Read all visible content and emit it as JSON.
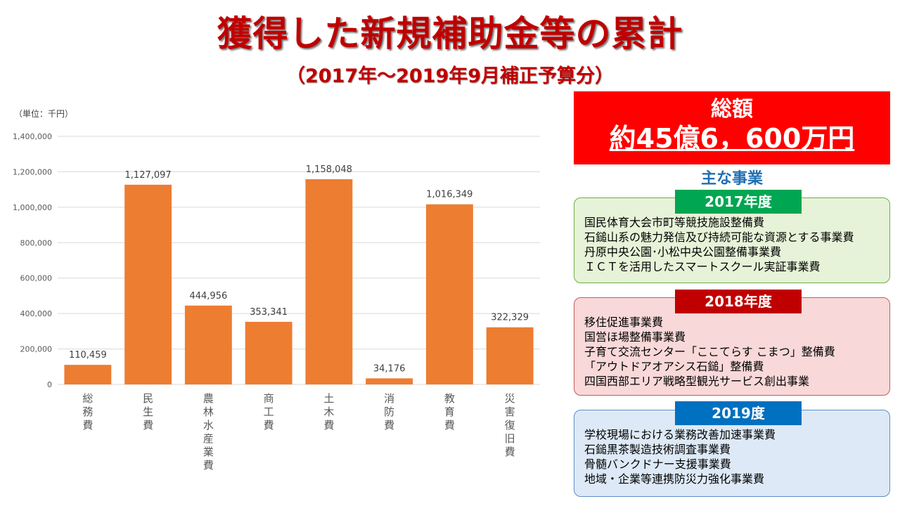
{
  "header": {
    "title": "獲得した新規補助金等の累計",
    "subtitle": "（2017年～2019年9月補正予算分）"
  },
  "chart_data": {
    "type": "bar",
    "unit_label": "（単位：千円）",
    "categories": [
      "総務費",
      "民生費",
      "農林水産業費",
      "商工費",
      "土木費",
      "消防費",
      "教育費",
      "災害復旧費"
    ],
    "values": [
      110459,
      1127097,
      444956,
      353341,
      1158048,
      34176,
      1016349,
      322329
    ],
    "value_labels": [
      "110,459",
      "1,127,097",
      "444,956",
      "353,341",
      "1,158,048",
      "34,176",
      "1,016,349",
      "322,329"
    ],
    "ylim": [
      0,
      1400000
    ],
    "yticks": [
      0,
      200000,
      400000,
      600000,
      800000,
      1000000,
      1200000,
      1400000
    ],
    "ytick_labels": [
      "0",
      "200,000",
      "400,000",
      "600,000",
      "800,000",
      "1,000,000",
      "1,200,000",
      "1,400,000"
    ],
    "bar_color": "#ed7d31",
    "grid": true,
    "legend": "none"
  },
  "summary": {
    "total_label": "総額",
    "total_value": "約45億6，600万円",
    "main_projects_heading": "主な事業"
  },
  "years": [
    {
      "label": "2017年度",
      "color": "#00a651",
      "items": [
        "国民体育大会市町等競技施設整備費",
        "石鎚山系の魅力発信及び持続可能な資源とする事業費",
        "丹原中央公園･小松中央公園整備事業費",
        "ＩＣＴを活用したスマートスクール実証事業費"
      ]
    },
    {
      "label": "2018年度",
      "color": "#c00000",
      "items": [
        "移住促進事業費",
        "国営ほ場整備事業費",
        "子育て交流センター「ここてらす こまつ」整備費",
        "「アウトドアオアシス石鎚」整備費",
        "四国西部エリア戦略型観光サービス創出事業"
      ]
    },
    {
      "label": "2019度",
      "color": "#0070c0",
      "items": [
        "学校現場における業務改善加速事業費",
        "石鎚黒茶製造技術調査事業費",
        "骨髄バンクドナー支援事業費",
        "地域・企業等連携防災力強化事業費"
      ]
    }
  ]
}
